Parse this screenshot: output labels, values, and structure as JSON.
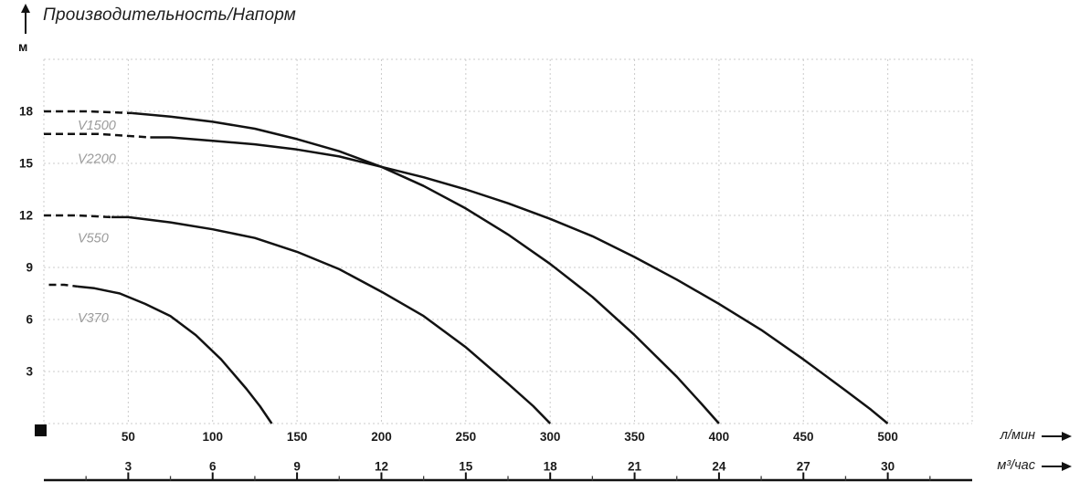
{
  "title": "Производительность/Напорм",
  "icons": {
    "y_axis_arrow": "arrow-up",
    "x_axis_arrow": "arrow-right",
    "origin_marker": "black-square"
  },
  "colors": {
    "curve": "#121212",
    "grid": "#cbcbcb",
    "series_label": "#9b9b9b",
    "text": "#1a1a1a",
    "axis_line": "#111111"
  },
  "chart_data": {
    "type": "line",
    "title": "Производительность/Напорм",
    "grid": true,
    "y_axis": {
      "unit": "м",
      "ticks": [
        3,
        6,
        9,
        12,
        15,
        18
      ],
      "range": [
        0,
        21
      ],
      "gridlines": [
        0,
        3,
        6,
        9,
        12,
        15,
        18,
        21
      ]
    },
    "x_axis": {
      "primary": {
        "unit": "л/мин",
        "ticks": [
          50,
          100,
          150,
          200,
          250,
          300,
          350,
          400,
          450,
          500
        ],
        "minor_ticks": [
          25,
          75,
          125,
          175,
          225,
          275,
          325,
          375,
          425,
          475,
          525
        ],
        "range": [
          0,
          550
        ],
        "gridline_step": 50
      },
      "secondary": {
        "unit": "м³/час",
        "ticks": [
          3,
          6,
          9,
          12,
          15,
          18,
          21,
          24,
          27,
          30
        ],
        "range": [
          0,
          33
        ]
      }
    },
    "series": [
      {
        "name": "V1500",
        "shutoff_head_m": 18,
        "max_flow_lmin": 400,
        "label_anchor": {
          "q_lmin": 20,
          "h_m": 17.2
        },
        "dashed_points": [
          [
            0,
            18
          ],
          [
            26,
            18
          ],
          [
            52,
            17.9
          ]
        ],
        "solid_points": [
          [
            52,
            17.9
          ],
          [
            75,
            17.7
          ],
          [
            100,
            17.4
          ],
          [
            125,
            17.0
          ],
          [
            150,
            16.4
          ],
          [
            175,
            15.7
          ],
          [
            200,
            14.8
          ],
          [
            225,
            13.7
          ],
          [
            250,
            12.4
          ],
          [
            275,
            10.9
          ],
          [
            300,
            9.2
          ],
          [
            325,
            7.3
          ],
          [
            350,
            5.1
          ],
          [
            375,
            2.7
          ],
          [
            390,
            1.1
          ],
          [
            400,
            0
          ]
        ]
      },
      {
        "name": "V2200",
        "shutoff_head_m": 16.7,
        "max_flow_lmin": 500,
        "label_anchor": {
          "q_lmin": 20,
          "h_m": 15.3
        },
        "dashed_points": [
          [
            0,
            16.7
          ],
          [
            32,
            16.7
          ],
          [
            63,
            16.5
          ]
        ],
        "solid_points": [
          [
            63,
            16.5
          ],
          [
            75,
            16.5
          ],
          [
            100,
            16.3
          ],
          [
            125,
            16.1
          ],
          [
            150,
            15.8
          ],
          [
            175,
            15.4
          ],
          [
            200,
            14.8
          ],
          [
            225,
            14.2
          ],
          [
            250,
            13.5
          ],
          [
            275,
            12.7
          ],
          [
            300,
            11.8
          ],
          [
            325,
            10.8
          ],
          [
            350,
            9.6
          ],
          [
            375,
            8.3
          ],
          [
            400,
            6.9
          ],
          [
            425,
            5.4
          ],
          [
            450,
            3.7
          ],
          [
            475,
            1.9
          ],
          [
            490,
            0.8
          ],
          [
            500,
            0
          ]
        ]
      },
      {
        "name": "V550",
        "shutoff_head_m": 12,
        "max_flow_lmin": 300,
        "label_anchor": {
          "q_lmin": 20,
          "h_m": 10.7
        },
        "dashed_points": [
          [
            0,
            12
          ],
          [
            20,
            12
          ],
          [
            40,
            11.9
          ]
        ],
        "solid_points": [
          [
            40,
            11.9
          ],
          [
            50,
            11.9
          ],
          [
            75,
            11.6
          ],
          [
            100,
            11.2
          ],
          [
            125,
            10.7
          ],
          [
            150,
            9.9
          ],
          [
            175,
            8.9
          ],
          [
            200,
            7.6
          ],
          [
            225,
            6.2
          ],
          [
            250,
            4.4
          ],
          [
            275,
            2.3
          ],
          [
            290,
            1.0
          ],
          [
            300,
            0
          ]
        ]
      },
      {
        "name": "V370",
        "shutoff_head_m": 8,
        "max_flow_lmin": 135,
        "label_anchor": {
          "q_lmin": 20,
          "h_m": 6.1
        },
        "dashed_points": [
          [
            3,
            8
          ],
          [
            12,
            8
          ],
          [
            20,
            7.9
          ]
        ],
        "solid_points": [
          [
            20,
            7.9
          ],
          [
            30,
            7.8
          ],
          [
            45,
            7.5
          ],
          [
            60,
            6.9
          ],
          [
            75,
            6.2
          ],
          [
            90,
            5.1
          ],
          [
            105,
            3.7
          ],
          [
            120,
            2.0
          ],
          [
            128,
            1.0
          ],
          [
            135,
            0
          ]
        ]
      }
    ]
  }
}
